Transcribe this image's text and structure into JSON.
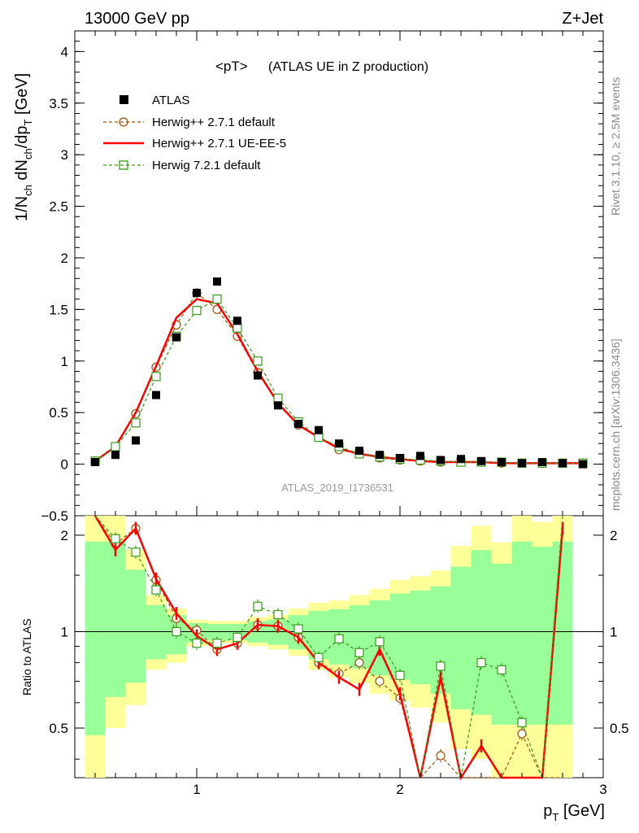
{
  "header": {
    "energy_label": "13000 GeV pp",
    "process_label": "Z+Jet",
    "title_main": "<pT>",
    "title_detail": "(ATLAS UE in Z production)",
    "rivet_label": "Rivet 3.1.10, ≥ 2.5M events",
    "mcplots_label": "mcplots.cern.ch [arXiv:1306.3436]",
    "analysis_label": "ATLAS_2019_I1736531"
  },
  "legend": {
    "entries": [
      {
        "label": "ATLAS"
      },
      {
        "label": "Herwig++ 2.7.1 default"
      },
      {
        "label": "Herwig++ 2.7.1 UE-EE-5"
      },
      {
        "label": "Herwig 7.2.1 default"
      }
    ]
  },
  "axes": {
    "ylabel_main": "1/N",
    "ylabel_main_sub1": "ch",
    "ylabel_main_mid": " dN",
    "ylabel_main_sub2": "ch",
    "ylabel_main_tail": "/dp",
    "ylabel_main_sub3": "T",
    "ylabel_main_unit": " [GeV]",
    "ylabel_ratio": "Ratio to ATLAS",
    "xlabel_main": "p",
    "xlabel_sub": "T",
    "xlabel_unit": " [GeV]"
  },
  "chart_data": {
    "type": "line",
    "xlim": [
      0.4,
      3.0
    ],
    "ylim": [
      -0.5,
      4.2
    ],
    "ratio_ylim": [
      0.35,
      2.3
    ],
    "grid": false,
    "legend_position": "top-left",
    "colors": {
      "atlas": "#000000",
      "herwigpp_default": "#a0520a",
      "herwigpp_ueee5": "#ff0000",
      "herwig7": "#3a9a1a",
      "band_stat": "#99ff99",
      "band_syst": "#ffff99"
    },
    "x_ticks": [
      1,
      2,
      3
    ],
    "y_ticks": [
      -0.5,
      0,
      0.5,
      1,
      1.5,
      2,
      2.5,
      3,
      3.5,
      4
    ],
    "ratio_ticks": [
      0.5,
      1,
      2
    ],
    "x": [
      0.5,
      0.6,
      0.7,
      0.8,
      0.9,
      1.0,
      1.1,
      1.2,
      1.3,
      1.4,
      1.5,
      1.6,
      1.7,
      1.8,
      1.9,
      2.0,
      2.1,
      2.2,
      2.3,
      2.4,
      2.5,
      2.6,
      2.7,
      2.8,
      2.9
    ],
    "series": [
      {
        "name": "ATLAS",
        "values": [
          0.02,
          0.09,
          0.23,
          0.67,
          1.23,
          1.66,
          1.77,
          1.39,
          0.86,
          0.57,
          0.39,
          0.33,
          0.2,
          0.13,
          0.09,
          0.06,
          0.08,
          0.04,
          0.05,
          0.03,
          0.02,
          0.01,
          0.02,
          0.01,
          0.0
        ]
      },
      {
        "name": "Herwig++ 2.7.1 default",
        "values": [
          0.03,
          0.17,
          0.49,
          0.94,
          1.35,
          1.66,
          1.5,
          1.24,
          0.89,
          0.59,
          0.38,
          0.27,
          0.14,
          0.1,
          0.06,
          0.04,
          0.03,
          0.02,
          0.02,
          0.02,
          0.01,
          0.01,
          0.01,
          0.01,
          0.01
        ]
      },
      {
        "name": "Herwig++ 2.7.1 UE-EE-5",
        "values": [
          0.03,
          0.17,
          0.5,
          0.95,
          1.42,
          1.6,
          1.56,
          1.26,
          0.9,
          0.59,
          0.38,
          0.26,
          0.15,
          0.1,
          0.07,
          0.05,
          0.03,
          0.02,
          0.02,
          0.02,
          0.01,
          0.01,
          0.01,
          0.01,
          0.01
        ]
      },
      {
        "name": "Herwig 7.2.1 default",
        "values": [
          0.03,
          0.17,
          0.4,
          0.85,
          1.24,
          1.49,
          1.6,
          1.32,
          1.0,
          0.64,
          0.41,
          0.26,
          0.17,
          0.1,
          0.07,
          0.05,
          0.04,
          0.03,
          0.02,
          0.02,
          0.02,
          0.01,
          0.01,
          0.01,
          0.01
        ]
      }
    ],
    "ratio": {
      "x": [
        0.5,
        0.6,
        0.7,
        0.8,
        0.9,
        1.0,
        1.1,
        1.2,
        1.3,
        1.4,
        1.5,
        1.6,
        1.7,
        1.8,
        1.9,
        2.0,
        2.1,
        2.2,
        2.3,
        2.4,
        2.5,
        2.6,
        2.7,
        2.8
      ],
      "series": [
        {
          "name": "Herwig++ 2.7.1 default",
          "values": [
            2.5,
            1.88,
            2.1,
            1.45,
            1.1,
            1.01,
            0.88,
            0.92,
            1.05,
            1.04,
            0.96,
            0.8,
            0.74,
            0.8,
            0.7,
            0.62,
            0.3,
            0.41,
            0.22,
            0.32,
            0.34,
            0.48,
            0.3,
            0.3
          ]
        },
        {
          "name": "Herwig++ 2.7.1 UE-EE-5",
          "values": [
            2.5,
            1.8,
            2.1,
            1.46,
            1.14,
            0.97,
            0.88,
            0.92,
            1.05,
            1.04,
            0.96,
            0.8,
            0.72,
            0.66,
            0.88,
            0.64,
            0.3,
            0.72,
            0.2,
            0.44,
            0.2,
            0.2,
            0.2,
            2.1
          ]
        },
        {
          "name": "Herwig 7.2.1 default",
          "values": [
            2.5,
            1.95,
            1.77,
            1.35,
            1.0,
            0.92,
            0.92,
            0.96,
            1.2,
            1.13,
            1.02,
            0.83,
            0.95,
            0.86,
            0.93,
            0.73,
            0.3,
            0.78,
            0.3,
            0.8,
            0.76,
            0.52,
            0.3,
            2.3
          ]
        }
      ],
      "band_bins": [
        0.45,
        0.55,
        0.65,
        0.75,
        0.85,
        0.95,
        1.05,
        1.15,
        1.25,
        1.35,
        1.45,
        1.55,
        1.65,
        1.75,
        1.85,
        1.95,
        2.05,
        2.15,
        2.25,
        2.35,
        2.45,
        2.55,
        2.65,
        2.75,
        2.85
      ],
      "band_syst_low": [
        0.3,
        0.5,
        0.59,
        0.76,
        0.8,
        0.9,
        0.92,
        0.92,
        0.9,
        0.88,
        0.84,
        0.76,
        0.72,
        0.69,
        0.64,
        0.61,
        0.58,
        0.52,
        0.43,
        0.4,
        0.35,
        0.35,
        0.35,
        0.35
      ],
      "band_syst_high": [
        2.3,
        2.3,
        1.8,
        1.3,
        1.18,
        1.09,
        1.08,
        1.08,
        1.11,
        1.13,
        1.18,
        1.23,
        1.25,
        1.3,
        1.36,
        1.45,
        1.49,
        1.55,
        1.85,
        2.14,
        1.9,
        2.3,
        2.2,
        2.3
      ]
    }
  }
}
